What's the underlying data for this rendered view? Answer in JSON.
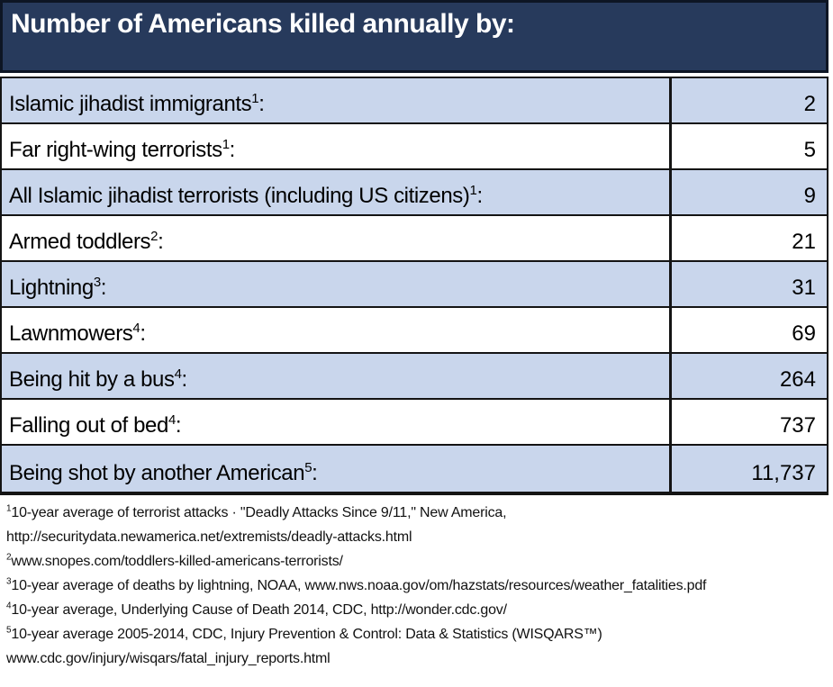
{
  "header": {
    "title": "Number of Americans killed annually by:"
  },
  "table": {
    "colon": ":",
    "rows": [
      {
        "label": "Islamic jihadist immigrants",
        "sup": "1",
        "value": "2"
      },
      {
        "label": "Far right-wing terrorists",
        "sup": "1",
        "value": "5"
      },
      {
        "label": "All Islamic jihadist terrorists (including US citizens)",
        "sup": "1",
        "value": "9"
      },
      {
        "label": "Armed toddlers",
        "sup": "2",
        "value": "21"
      },
      {
        "label": "Lightning",
        "sup": "3",
        "value": "31"
      },
      {
        "label": "Lawnmowers",
        "sup": "4",
        "value": "69"
      },
      {
        "label": "Being hit by a bus",
        "sup": "4",
        "value": "264"
      },
      {
        "label": "Falling out of bed",
        "sup": "4",
        "value": "737"
      },
      {
        "label": "Being shot by another American",
        "sup": "5",
        "value": "11,737"
      }
    ]
  },
  "footnotes": [
    {
      "sup": "1",
      "lines": [
        "10-year average of terrorist attacks · \"Deadly Attacks Since 9/11,\" New America,",
        "http://securitydata.newamerica.net/extremists/deadly-attacks.html"
      ]
    },
    {
      "sup": "2",
      "lines": [
        "www.snopes.com/toddlers-killed-americans-terrorists/"
      ]
    },
    {
      "sup": "3",
      "lines": [
        "10-year average of deaths by lightning, NOAA, www.nws.noaa.gov/om/hazstats/resources/weather_fatalities.pdf"
      ]
    },
    {
      "sup": "4",
      "lines": [
        "10-year average, Underlying Cause of Death 2014, CDC, http://wonder.cdc.gov/"
      ]
    },
    {
      "sup": "5",
      "lines": [
        "10-year average 2005-2014, CDC, Injury Prevention & Control: Data & Statistics (WISQARS™)",
        "www.cdc.gov/injury/wisqars/fatal_injury_reports.html"
      ]
    }
  ],
  "colors": {
    "header_bg": "#273a5c",
    "header_text": "#ffffff",
    "row_alt_bg": "#c9d6ec",
    "row_bg": "#ffffff",
    "border": "#141414"
  },
  "chart_data": {
    "type": "table",
    "title": "Number of Americans killed annually by:",
    "categories": [
      "Islamic jihadist immigrants",
      "Far right-wing terrorists",
      "All Islamic jihadist terrorists (including US citizens)",
      "Armed toddlers",
      "Lightning",
      "Lawnmowers",
      "Being hit by a bus",
      "Falling out of bed",
      "Being shot by another American"
    ],
    "values": [
      2,
      5,
      9,
      21,
      31,
      69,
      264,
      737,
      11737
    ],
    "notes_present": true
  }
}
